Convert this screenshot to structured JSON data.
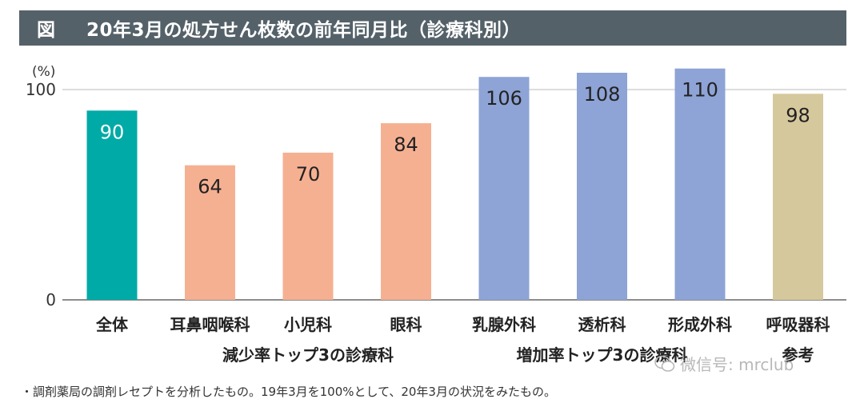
{
  "header": {
    "fig_label": "図",
    "title": "20年3月の処方せん枚数の前年同月比（診療科別）"
  },
  "chart_data": {
    "type": "bar",
    "ylabel": "(%)",
    "ylim": [
      0,
      100
    ],
    "yticks": [
      0,
      100
    ],
    "grid": false,
    "categories": [
      "全体",
      "耳鼻咽喉科",
      "小児科",
      "眼科",
      "乳腺外科",
      "透析科",
      "形成外科",
      "呼吸器科"
    ],
    "values": [
      90,
      64,
      70,
      84,
      106,
      108,
      110,
      98
    ],
    "data_labels": [
      "90",
      "64",
      "70",
      "84",
      "106",
      "108",
      "110",
      "98"
    ],
    "colors": [
      "#00aaa6",
      "#f5b092",
      "#f5b092",
      "#f5b092",
      "#8ea3d6",
      "#8ea3d6",
      "#8ea3d6",
      "#d6c89d"
    ],
    "label_colors": [
      "#ffffff",
      "#222222",
      "#222222",
      "#222222",
      "#222222",
      "#222222",
      "#222222",
      "#222222"
    ],
    "groups": [
      {
        "label": "減少率トップ3の診療科"
      },
      {
        "label": "増加率トップ3の診療科"
      },
      {
        "label": "参考"
      }
    ]
  },
  "footnote": "・調剤薬局の調剤レセプトを分析したもの。19年3月を100%として、20年3月の状況をみたもの。",
  "watermark": {
    "text": "微信号: mrclub",
    "icon": "wechat-icon"
  }
}
